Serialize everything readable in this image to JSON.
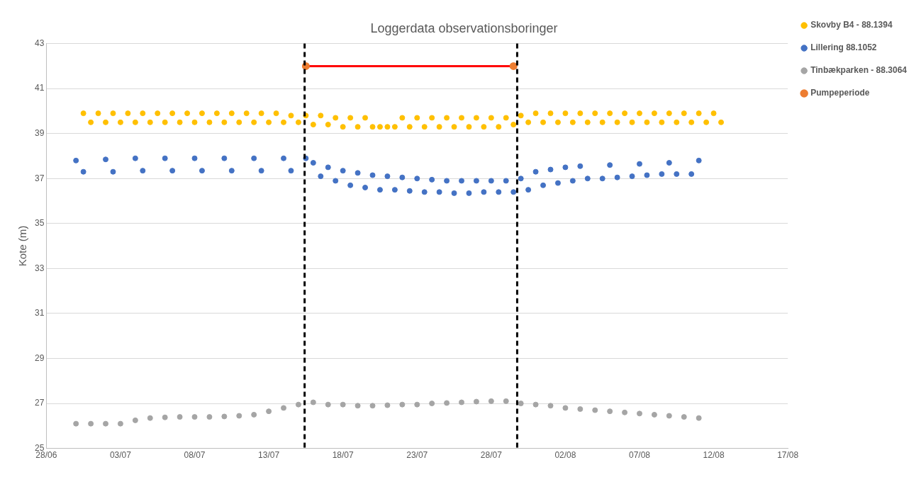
{
  "chart_data": {
    "type": "scatter",
    "title": "Loggerdata observationsboringer",
    "ylabel": "Kote (m)",
    "xlim": [
      "--06-28",
      "--08-17"
    ],
    "xticks": [
      {
        "value": "--06-28",
        "label": "28/06"
      },
      {
        "value": "--07-03",
        "label": "03/07"
      },
      {
        "value": "--07-08",
        "label": "08/07"
      },
      {
        "value": "--07-13",
        "label": "13/07"
      },
      {
        "value": "--07-18",
        "label": "18/07"
      },
      {
        "value": "--07-23",
        "label": "23/07"
      },
      {
        "value": "--07-28",
        "label": "28/07"
      },
      {
        "value": "--08-02",
        "label": "02/08"
      },
      {
        "value": "--08-07",
        "label": "07/08"
      },
      {
        "value": "--08-12",
        "label": "12/08"
      },
      {
        "value": "--08-17",
        "label": "17/08"
      }
    ],
    "ylim": [
      25,
      43
    ],
    "yticks": [
      25,
      27,
      29,
      31,
      33,
      35,
      37,
      39,
      41,
      43
    ],
    "grid": "y",
    "legend": "right",
    "marker": "circle",
    "ref_lines": [
      {
        "axis": "x",
        "value": "--07-15T10:00",
        "color": "#000000",
        "line_style": "dashed"
      },
      {
        "axis": "x",
        "value": "--07-29T18:00",
        "color": "#000000",
        "line_style": "dashed"
      }
    ],
    "series": [
      {
        "name": "Skovby B4 - 88.1394",
        "color": "#ffc000",
        "x": [
          "--06-30T12:00",
          "--07-01",
          "--07-01T12:00",
          "--07-02",
          "--07-02T12:00",
          "--07-03",
          "--07-03T12:00",
          "--07-04",
          "--07-04T12:00",
          "--07-05",
          "--07-05T12:00",
          "--07-06",
          "--07-06T12:00",
          "--07-07",
          "--07-07T12:00",
          "--07-08",
          "--07-08T12:00",
          "--07-09",
          "--07-09T12:00",
          "--07-10",
          "--07-10T12:00",
          "--07-11",
          "--07-11T12:00",
          "--07-12",
          "--07-12T12:00",
          "--07-13",
          "--07-13T12:00",
          "--07-14",
          "--07-14T12:00",
          "--07-15",
          "--07-15T12:00",
          "--07-16",
          "--07-16T12:00",
          "--07-17",
          "--07-17T12:00",
          "--07-18",
          "--07-18T12:00",
          "--07-19",
          "--07-19T12:00",
          "--07-20",
          "--07-20T12:00",
          "--07-21",
          "--07-21T12:00",
          "--07-22",
          "--07-22T12:00",
          "--07-23",
          "--07-23T12:00",
          "--07-24",
          "--07-24T12:00",
          "--07-25",
          "--07-25T12:00",
          "--07-26",
          "--07-26T12:00",
          "--07-27",
          "--07-27T12:00",
          "--07-28",
          "--07-28T12:00",
          "--07-29",
          "--07-29T12:00",
          "--07-30",
          "--07-30T12:00",
          "--07-31",
          "--07-31T12:00",
          "--08-01",
          "--08-01T12:00",
          "--08-02",
          "--08-02T12:00",
          "--08-03",
          "--08-03T12:00",
          "--08-04",
          "--08-04T12:00",
          "--08-05",
          "--08-05T12:00",
          "--08-06",
          "--08-06T12:00",
          "--08-07",
          "--08-07T12:00",
          "--08-08",
          "--08-08T12:00",
          "--08-09",
          "--08-09T12:00",
          "--08-10",
          "--08-10T12:00",
          "--08-11",
          "--08-11T12:00",
          "--08-12",
          "--08-12T12:00"
        ],
        "values": [
          39.9,
          39.5,
          39.9,
          39.5,
          39.9,
          39.5,
          39.9,
          39.5,
          39.9,
          39.5,
          39.9,
          39.5,
          39.9,
          39.5,
          39.9,
          39.5,
          39.9,
          39.5,
          39.9,
          39.5,
          39.9,
          39.5,
          39.9,
          39.5,
          39.9,
          39.5,
          39.9,
          39.5,
          39.8,
          39.5,
          39.8,
          39.4,
          39.8,
          39.4,
          39.7,
          39.3,
          39.7,
          39.3,
          39.7,
          39.3,
          39.3,
          39.3,
          39.3,
          39.7,
          39.3,
          39.7,
          39.3,
          39.7,
          39.3,
          39.7,
          39.3,
          39.7,
          39.3,
          39.7,
          39.3,
          39.7,
          39.3,
          39.7,
          39.4,
          39.8,
          39.5,
          39.9,
          39.5,
          39.9,
          39.5,
          39.9,
          39.5,
          39.9,
          39.5,
          39.9,
          39.5,
          39.9,
          39.5,
          39.9,
          39.5,
          39.9,
          39.5,
          39.9,
          39.5,
          39.9,
          39.5,
          39.9,
          39.5,
          39.9,
          39.5,
          39.9,
          39.5
        ]
      },
      {
        "name": "Lillering 88.1052",
        "color": "#4472c4",
        "x": [
          "--06-30",
          "--07-02",
          "--07-04",
          "--07-06",
          "--07-08",
          "--07-10",
          "--07-12",
          "--07-14",
          "--07-15T12:00",
          "--07-16",
          "--07-17",
          "--07-18",
          "--07-19",
          "--07-20",
          "--07-21",
          "--07-22",
          "--07-23",
          "--07-24",
          "--07-25",
          "--07-26",
          "--07-27",
          "--07-28",
          "--07-29",
          "--07-30",
          "--07-31",
          "--08-01",
          "--08-02",
          "--08-03",
          "--08-05",
          "--08-07",
          "--08-09",
          "--08-11",
          "--06-30T12:00",
          "--07-02T12:00",
          "--07-04T12:00",
          "--07-06T12:00",
          "--07-08T12:00",
          "--07-10T12:00",
          "--07-12T12:00",
          "--07-14T12:00",
          "--07-16T12:00",
          "--07-17T12:00",
          "--07-18T12:00",
          "--07-19T12:00",
          "--07-20T12:00",
          "--07-21T12:00",
          "--07-22T12:00",
          "--07-23T12:00",
          "--07-24T12:00",
          "--07-25T12:00",
          "--07-26T12:00",
          "--07-27T12:00",
          "--07-28T12:00",
          "--07-29T12:00",
          "--07-30T12:00",
          "--07-31T12:00",
          "--08-01T12:00",
          "--08-02T12:00",
          "--08-03T12:00",
          "--08-04T12:00",
          "--08-05T12:00",
          "--08-06T12:00",
          "--08-07T12:00",
          "--08-08T12:00",
          "--08-09T12:00",
          "--08-10T12:00"
        ],
        "values": [
          37.8,
          37.85,
          37.9,
          37.9,
          37.9,
          37.9,
          37.9,
          37.9,
          37.9,
          37.7,
          37.5,
          37.35,
          37.25,
          37.15,
          37.1,
          37.05,
          37.0,
          36.95,
          36.9,
          36.9,
          36.9,
          36.9,
          36.9,
          37.0,
          37.3,
          37.4,
          37.5,
          37.55,
          37.6,
          37.65,
          37.7,
          37.8,
          37.3,
          37.3,
          37.35,
          37.35,
          37.35,
          37.35,
          37.35,
          37.35,
          37.1,
          36.9,
          36.7,
          36.6,
          36.5,
          36.5,
          36.45,
          36.4,
          36.4,
          36.35,
          36.35,
          36.4,
          36.4,
          36.4,
          36.5,
          36.7,
          36.8,
          36.9,
          37.0,
          37.0,
          37.05,
          37.1,
          37.15,
          37.2,
          37.2,
          37.2
        ]
      },
      {
        "name": "Tinbækparken - 88.3064",
        "color": "#a5a5a5",
        "x": [
          "--06-30",
          "--07-01",
          "--07-02",
          "--07-03",
          "--07-04",
          "--07-05",
          "--07-06",
          "--07-07",
          "--07-08",
          "--07-09",
          "--07-10",
          "--07-11",
          "--07-12",
          "--07-13",
          "--07-14",
          "--07-15",
          "--07-16",
          "--07-17",
          "--07-18",
          "--07-19",
          "--07-20",
          "--07-21",
          "--07-22",
          "--07-23",
          "--07-24",
          "--07-25",
          "--07-26",
          "--07-27",
          "--07-28",
          "--07-29",
          "--07-30",
          "--07-31",
          "--08-01",
          "--08-02",
          "--08-03",
          "--08-04",
          "--08-05",
          "--08-06",
          "--08-07",
          "--08-08",
          "--08-09",
          "--08-10",
          "--08-11"
        ],
        "values": [
          26.1,
          26.1,
          26.1,
          26.1,
          26.25,
          26.35,
          26.38,
          26.4,
          26.4,
          26.4,
          26.42,
          26.45,
          26.5,
          26.65,
          26.8,
          26.95,
          27.05,
          26.95,
          26.95,
          26.9,
          26.9,
          26.92,
          26.95,
          26.95,
          27.0,
          27.02,
          27.05,
          27.08,
          27.1,
          27.1,
          27.0,
          26.95,
          26.9,
          26.8,
          26.75,
          26.7,
          26.65,
          26.6,
          26.55,
          26.5,
          26.45,
          26.4,
          26.35
        ]
      },
      {
        "name": "Pumpeperiode",
        "type": "line",
        "color": "#ff0000",
        "colors": [
          "#ed7d31",
          "#ed7d31"
        ],
        "x": [
          "--07-15T12:00",
          "--07-29T12:00"
        ],
        "values": [
          42,
          42
        ]
      }
    ]
  }
}
